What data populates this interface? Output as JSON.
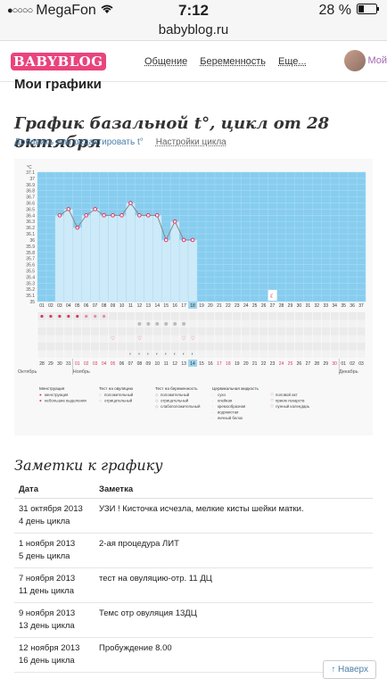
{
  "statusbar": {
    "carrier": "MegaFon",
    "time": "7:12",
    "battery": "28 %",
    "signal": "●○○○○"
  },
  "url": "babyblog.ru",
  "site": {
    "logo": "BABYBLOG",
    "nav": [
      "Общение",
      "Беременность",
      "Еще..."
    ],
    "profile": "Мой"
  },
  "page": {
    "section": "Мои графики",
    "title": "График базальной t°, цикл от 28 октября",
    "links": {
      "edit": "Добавить или редактировать t°",
      "settings": "Настройки цикла"
    }
  },
  "chart_data": {
    "type": "line",
    "y_unit": "°C",
    "ylim": [
      35.0,
      37.1
    ],
    "y_ticks": [
      "35",
      "35.1",
      "35.2",
      "35.3",
      "35.4",
      "35.5",
      "35.6",
      "35.7",
      "35.8",
      "35.9",
      "36",
      "36.1",
      "36.2",
      "36.3",
      "36.4",
      "36.5",
      "36.6",
      "36.7",
      "36.8",
      "36.9",
      "37",
      "37.1"
    ],
    "day_labels": [
      "01",
      "02",
      "03",
      "04",
      "05",
      "06",
      "07",
      "08",
      "09",
      "10",
      "11",
      "12",
      "13",
      "14",
      "15",
      "16",
      "17",
      "18",
      "19",
      "20",
      "21",
      "22",
      "23",
      "24",
      "25",
      "26",
      "27",
      "28",
      "29",
      "30",
      "31",
      "32",
      "33",
      "34",
      "35",
      "36",
      "37"
    ],
    "cycle_days_measured": [
      3,
      4,
      5,
      6,
      7,
      8,
      9,
      10,
      11,
      12,
      13,
      14,
      15,
      16,
      17,
      18
    ],
    "temperatures": [
      36.4,
      36.5,
      36.2,
      36.4,
      36.5,
      36.4,
      36.4,
      36.4,
      36.6,
      36.4,
      36.4,
      36.4,
      36.0,
      36.3,
      36.0,
      36.0
    ],
    "current_day": "18",
    "date_labels": [
      "28",
      "29",
      "30",
      "31",
      "01",
      "02",
      "03",
      "04",
      "05",
      "06",
      "07",
      "08",
      "09",
      "10",
      "11",
      "12",
      "13",
      "14",
      "15",
      "16",
      "17",
      "18",
      "19",
      "20",
      "21",
      "22",
      "23",
      "24",
      "25",
      "26",
      "27",
      "28",
      "29",
      "30",
      "01",
      "02",
      "03"
    ],
    "date_marked_day": "14",
    "months": [
      "Октябрь",
      "Ноябрь",
      "Декабрь"
    ],
    "legend": {
      "menstruation": {
        "title": "Менструация",
        "items": [
          "менструация",
          "небольшие выделения"
        ]
      },
      "ovulation": {
        "title": "Тест на овуляцию",
        "items": [
          "положительный",
          "отрицательный"
        ]
      },
      "pregnancy": {
        "title": "Тест на беременность",
        "items": [
          "положительный",
          "отрицательный",
          "слабоположительный"
        ]
      },
      "cervical": {
        "title": "Цервикальная жидкость",
        "items": [
          "сухо",
          "клейкая",
          "кремообразная",
          "водянистая",
          "яичный белок"
        ]
      },
      "other": {
        "items": [
          "половой акт",
          "прием лекарств",
          "лунный календарь"
        ]
      }
    },
    "colors": {
      "plot_bg": "#87cdef",
      "bar": "#cdeaf9",
      "line": "#888888",
      "point": "#e23060",
      "highlight": "#9fd4ef"
    }
  },
  "notes": {
    "title": "Заметки к графику",
    "columns": [
      "Дата",
      "Заметка"
    ],
    "rows": [
      {
        "date": "31 октября 2013",
        "day": "4 день цикла",
        "note": "УЗИ ! Кисточка исчезла, мелкие кисты шейки матки."
      },
      {
        "date": "1 ноября 2013",
        "day": "5 день цикла",
        "note": "2-ая процедура ЛИТ"
      },
      {
        "date": "7 ноября 2013",
        "day": "11 день цикла",
        "note": "тест на овуляцию-отр. 11 ДЦ"
      },
      {
        "date": "9 ноября 2013",
        "day": "13 день цикла",
        "note": "Темс отр овуляция 13ДЦ"
      },
      {
        "date": "12 ноября 2013",
        "day": "16 день цикла",
        "note": "Пробуждение 8.00"
      }
    ]
  },
  "back_to_top": "↑ Наверх"
}
